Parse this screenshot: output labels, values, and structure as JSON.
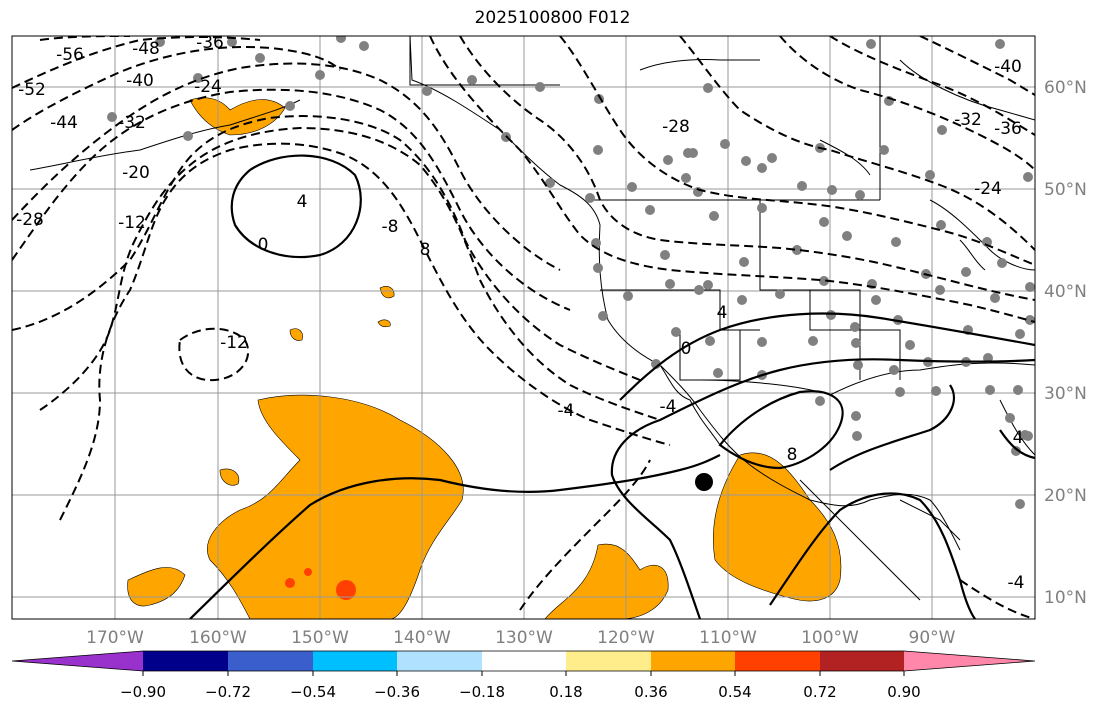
{
  "title": "2025100800 F012",
  "map": {
    "lon_labels": [
      "170°W",
      "160°W",
      "150°W",
      "140°W",
      "130°W",
      "120°W",
      "110°W",
      "100°W",
      "90°W"
    ],
    "lat_labels": [
      "60°N",
      "50°N",
      "40°N",
      "30°N",
      "20°N",
      "10°N"
    ],
    "contour_labels": [
      "-56",
      "-52",
      "-48",
      "-44",
      "-40",
      "-36",
      "-32",
      "-28",
      "-24",
      "-20",
      "-12",
      "0",
      "4",
      "8",
      "-8",
      "-12",
      "-4",
      "-4",
      "0",
      "4",
      "8",
      "-28",
      "-32",
      "-36",
      "-40",
      "-24",
      "-4",
      "4"
    ],
    "colors": {
      "positive_fill": "#ffa500",
      "strong_fill": "#ff4000",
      "contour": "#000000",
      "station": "#808080"
    }
  },
  "colorbar": {
    "ticks": [
      "−0.90",
      "−0.72",
      "−0.54",
      "−0.36",
      "−0.18",
      "0.18",
      "0.36",
      "0.54",
      "0.72",
      "0.90"
    ],
    "colors": [
      "#9932cc",
      "#00008b",
      "#3a5fcd",
      "#00bfff",
      "#b0e2ff",
      "#ffffff",
      "#ffec8b",
      "#ffa500",
      "#ff4000",
      "#b22222",
      "#ff88aa"
    ]
  }
}
